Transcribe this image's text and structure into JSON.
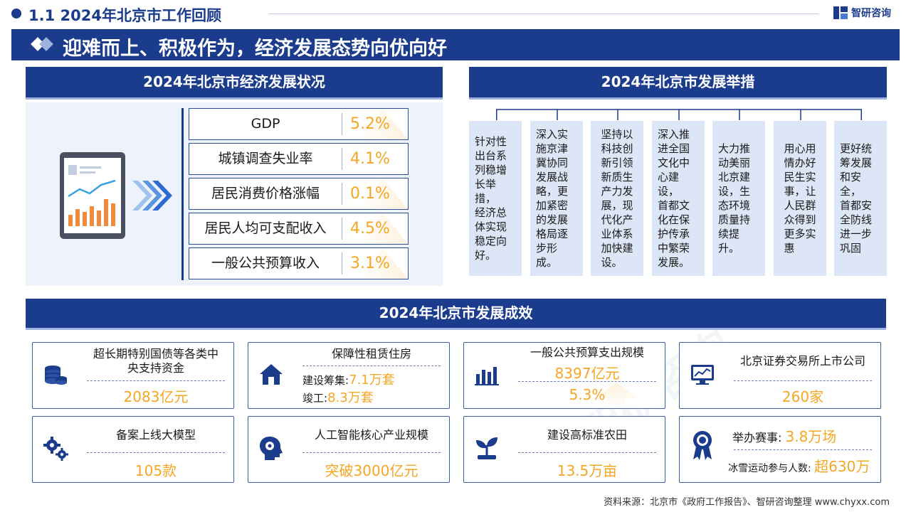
{
  "header": {
    "page_title": "1.1  2024年北京市工作回顾",
    "logo_text": "智研咨询",
    "banner_title": "迎难而上、积极作为，经济发展态势向优向好"
  },
  "economy": {
    "title": "2024年北京市经济发展状况",
    "indicators": [
      {
        "label": "GDP",
        "value": "5.2%"
      },
      {
        "label": "城镇调查失业率",
        "value": "4.1%"
      },
      {
        "label": "居民消费价格涨幅",
        "value": "0.1%"
      },
      {
        "label": "居民人均可支配收入",
        "value": "4.5%"
      },
      {
        "label": "一般公共预算收入",
        "value": "3.1%"
      }
    ]
  },
  "measures": {
    "title": "2024年北京市发展举措",
    "items": [
      [
        "针对性",
        "出台系",
        "列稳增",
        "长举措，",
        "经济总",
        "体实现",
        "稳定向",
        "好。"
      ],
      [
        "深入实",
        "施京津",
        "冀协同",
        "发展战",
        "略，更",
        "加紧密",
        "的发展",
        "格局逐",
        "步形成。"
      ],
      [
        "坚持以",
        "科技创",
        "新引领",
        "新质生",
        "产力发",
        "展，现",
        "代化产",
        "业体系",
        "加快建",
        "设。"
      ],
      [
        "深入推",
        "进全国",
        "文化中",
        "心建设，",
        "首都文",
        "化在保",
        "护传承",
        "中繁荣",
        "发展。"
      ],
      [
        "大力推",
        "动美丽",
        "北京建",
        "设，生",
        "态环境",
        "质量持",
        "续提升。"
      ],
      [
        "用心用",
        "情办好",
        "民生实",
        "事，让",
        "人民群",
        "众得到",
        "更多实",
        "惠"
      ],
      [
        "更好统",
        "筹发展",
        "和安全，",
        "首都安",
        "全防线",
        "进一步",
        "巩固"
      ]
    ]
  },
  "results": {
    "title": "2024年北京市发展成效",
    "cards": [
      {
        "icon": "coins-icon",
        "title": "超长期特别国债等各类中央支持资金",
        "title_lines": [
          "超长期特别国债等各类中",
          "央支持资金"
        ],
        "value": "2083亿元"
      },
      {
        "icon": "house-icon",
        "title": "保障性租赁住房",
        "line1_label": "建设筹集:",
        "line1_value": "7.1万套",
        "line2_label": "竣工:",
        "line2_value": "8.3万套"
      },
      {
        "icon": "bar-chart-icon",
        "title": "一般公共预算支出规模",
        "value": "8397亿元",
        "value2": "5.3%"
      },
      {
        "icon": "monitor-chart-icon",
        "title": "北京证券交易所上市公司",
        "value": "260家"
      },
      {
        "icon": "gears-icon",
        "title": "备案上线大模型",
        "value": "105款"
      },
      {
        "icon": "ai-head-icon",
        "title": "人工智能核心产业规模",
        "value": "突破3000亿元"
      },
      {
        "icon": "plant-icon",
        "title": "建设高标准农田",
        "value": "13.5万亩"
      },
      {
        "icon": "medal-icon",
        "line1_label": "举办赛事:",
        "line1_value": "3.8万场",
        "line2_label": "冰雪运动参与人数:",
        "line2_value": "超630万"
      }
    ]
  },
  "footer": {
    "source": "资料来源：北京市《政府工作报告》、智研咨询整理   www.chyxx.com"
  }
}
